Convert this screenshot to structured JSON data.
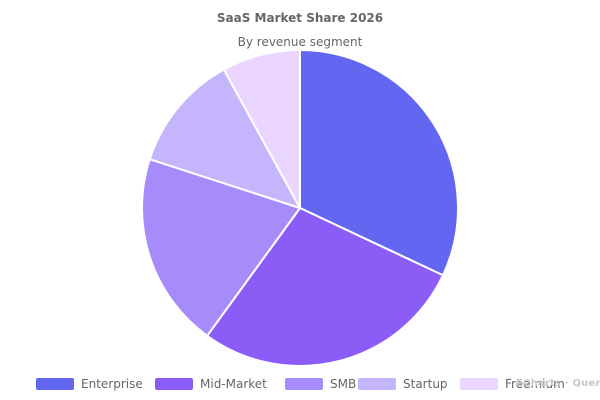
{
  "chart_data": {
    "type": "pie",
    "title": "SaaS Market Share 2026",
    "subtitle": "By revenue segment",
    "categories": [
      "Enterprise",
      "Mid-Market",
      "SMB",
      "Startup",
      "Freemium"
    ],
    "values": [
      32,
      28,
      20,
      12,
      8
    ],
    "colors": [
      "#6366f1",
      "#8b5cf6",
      "#a78bfa",
      "#c4b5fd",
      "#e9d5ff"
    ],
    "legend_position": "bottom",
    "start_angle": "12 o'clock",
    "direction": "clockwise"
  },
  "watermark": {
    "text": "ECharts · Query"
  }
}
